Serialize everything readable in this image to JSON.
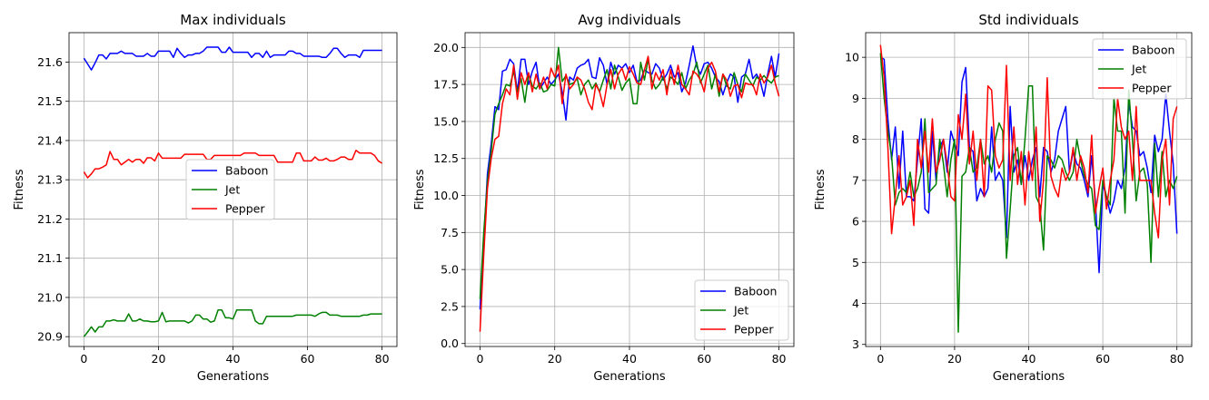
{
  "colors": {
    "Baboon": "#0000ff",
    "Jet": "#008000",
    "Pepper": "#ff0000"
  },
  "chart_data": [
    {
      "type": "line",
      "title": "Max individuals",
      "xlabel": "Generations",
      "ylabel": "Fitness",
      "grid": true,
      "legend": "center",
      "xlim": [
        -4,
        84
      ],
      "ylim": [
        20.875,
        21.675
      ],
      "xticks": [
        0,
        20,
        40,
        60,
        80
      ],
      "xtick_labels": [
        "0",
        "20",
        "40",
        "60",
        "80"
      ],
      "yticks": [
        20.9,
        21.0,
        21.1,
        21.2,
        21.3,
        21.4,
        21.5,
        21.6
      ],
      "ytick_labels": [
        "20.9",
        "21.0",
        "21.1",
        "21.2",
        "21.3",
        "21.4",
        "21.5",
        "21.6"
      ],
      "series": [
        {
          "name": "Baboon",
          "color": "#0000ff",
          "values": [
            21.61,
            21.595,
            21.58,
            21.598,
            21.618,
            21.618,
            21.608,
            21.622,
            21.622,
            21.622,
            21.628,
            21.622,
            21.622,
            21.622,
            21.615,
            21.615,
            21.615,
            21.622,
            21.615,
            21.615,
            21.628,
            21.628,
            21.628,
            21.628,
            21.612,
            21.635,
            21.622,
            21.612,
            21.618,
            21.618,
            21.622,
            21.622,
            21.628,
            21.638,
            21.638,
            21.638,
            21.638,
            21.625,
            21.625,
            21.638,
            21.625,
            21.625,
            21.625,
            21.625,
            21.625,
            21.612,
            21.622,
            21.622,
            21.612,
            21.628,
            21.612,
            21.618,
            21.618,
            21.618,
            21.618,
            21.628,
            21.628,
            21.622,
            21.622,
            21.615,
            21.615,
            21.615,
            21.615,
            21.615,
            21.612,
            21.612,
            21.622,
            21.635,
            21.635,
            21.622,
            21.612,
            21.618,
            21.618,
            21.618,
            21.612,
            21.63,
            21.63,
            21.63,
            21.63,
            21.63,
            21.63
          ]
        },
        {
          "name": "Jet",
          "color": "#008000",
          "values": [
            20.9,
            20.912,
            20.925,
            20.912,
            20.925,
            20.925,
            20.94,
            20.94,
            20.943,
            20.94,
            20.94,
            20.94,
            20.958,
            20.94,
            20.94,
            20.945,
            20.94,
            20.94,
            20.938,
            20.938,
            20.94,
            20.962,
            20.938,
            20.94,
            20.94,
            20.94,
            20.94,
            20.94,
            20.935,
            20.94,
            20.955,
            20.955,
            20.945,
            20.945,
            20.937,
            20.94,
            20.968,
            20.968,
            20.948,
            20.948,
            20.945,
            20.968,
            20.968,
            20.968,
            20.968,
            20.968,
            20.94,
            20.933,
            20.933,
            20.952,
            20.952,
            20.952,
            20.952,
            20.952,
            20.952,
            20.952,
            20.952,
            20.955,
            20.955,
            20.955,
            20.955,
            20.955,
            20.952,
            20.958,
            20.962,
            20.962,
            20.955,
            20.955,
            20.955,
            20.952,
            20.952,
            20.952,
            20.952,
            20.952,
            20.952,
            20.955,
            20.955,
            20.958,
            20.958,
            20.958,
            20.958
          ]
        },
        {
          "name": "Pepper",
          "color": "#ff0000",
          "values": [
            21.32,
            21.305,
            21.315,
            21.328,
            21.328,
            21.332,
            21.338,
            21.372,
            21.352,
            21.352,
            21.338,
            21.345,
            21.352,
            21.345,
            21.352,
            21.352,
            21.342,
            21.356,
            21.356,
            21.348,
            21.368,
            21.355,
            21.355,
            21.355,
            21.355,
            21.355,
            21.355,
            21.365,
            21.365,
            21.365,
            21.365,
            21.365,
            21.365,
            21.352,
            21.352,
            21.362,
            21.362,
            21.362,
            21.362,
            21.362,
            21.362,
            21.362,
            21.362,
            21.368,
            21.368,
            21.368,
            21.368,
            21.362,
            21.362,
            21.362,
            21.362,
            21.362,
            21.345,
            21.345,
            21.345,
            21.345,
            21.345,
            21.368,
            21.368,
            21.348,
            21.348,
            21.348,
            21.358,
            21.35,
            21.35,
            21.355,
            21.348,
            21.348,
            21.352,
            21.358,
            21.358,
            21.352,
            21.352,
            21.375,
            21.368,
            21.368,
            21.368,
            21.368,
            21.362,
            21.348,
            21.342
          ]
        }
      ]
    },
    {
      "type": "line",
      "title": "Avg individuals",
      "xlabel": "Generations",
      "ylabel": "Fitness",
      "grid": true,
      "legend": "lower right",
      "xlim": [
        -4,
        84
      ],
      "ylim": [
        -0.2,
        21.0
      ],
      "xticks": [
        0,
        20,
        40,
        60,
        80
      ],
      "xtick_labels": [
        "0",
        "20",
        "40",
        "60",
        "80"
      ],
      "yticks": [
        0.0,
        2.5,
        5.0,
        7.5,
        10.0,
        12.5,
        15.0,
        17.5,
        20.0
      ],
      "ytick_labels": [
        "0.0",
        "2.5",
        "5.0",
        "7.5",
        "10.0",
        "12.5",
        "15.0",
        "17.5",
        "20.0"
      ],
      "series": [
        {
          "name": "Baboon",
          "color": "#0000ff",
          "values": [
            2.3,
            7.0,
            11.5,
            13.5,
            16.0,
            15.8,
            18.4,
            18.5,
            19.2,
            18.9,
            17.0,
            19.2,
            19.2,
            17.5,
            18.4,
            19.0,
            17.2,
            17.6,
            18.0,
            17.5,
            17.8,
            18.2,
            17.0,
            15.1,
            18.0,
            17.8,
            18.6,
            18.8,
            18.9,
            19.2,
            18.0,
            17.9,
            19.3,
            18.8,
            17.5,
            19.0,
            18.2,
            18.8,
            18.6,
            18.9,
            18.3,
            18.8,
            17.7,
            17.8,
            18.5,
            18.3,
            18.2,
            18.9,
            18.6,
            17.8,
            18.2,
            18.8,
            18.0,
            18.3,
            17.0,
            17.6,
            18.8,
            20.1,
            18.7,
            18.2,
            18.9,
            19.0,
            18.6,
            18.0,
            17.7,
            16.8,
            17.6,
            18.2,
            18.0,
            16.3,
            18.0,
            18.2,
            19.2,
            17.9,
            18.2,
            17.7,
            16.7,
            18.2,
            19.4,
            18.0,
            19.6
          ]
        },
        {
          "name": "Jet",
          "color": "#008000",
          "values": [
            3.0,
            7.5,
            11.0,
            13.0,
            15.5,
            16.2,
            16.8,
            17.5,
            17.4,
            18.4,
            17.0,
            17.9,
            16.3,
            18.2,
            17.4,
            17.2,
            17.6,
            17.0,
            17.1,
            17.5,
            17.4,
            20.0,
            17.7,
            18.1,
            17.5,
            17.6,
            17.9,
            16.8,
            17.5,
            17.8,
            17.2,
            17.6,
            17.0,
            17.8,
            18.5,
            17.2,
            18.8,
            18.0,
            17.1,
            17.6,
            17.9,
            16.2,
            16.2,
            19.0,
            17.8,
            19.2,
            17.8,
            17.2,
            17.5,
            18.0,
            17.2,
            18.0,
            17.8,
            17.5,
            18.3,
            17.2,
            17.8,
            18.2,
            19.0,
            17.6,
            18.2,
            18.8,
            17.2,
            18.2,
            16.7,
            18.2,
            17.4,
            17.2,
            18.3,
            17.5,
            17.0,
            18.2,
            17.8,
            17.4,
            18.0,
            17.8,
            18.1,
            17.8,
            17.6,
            18.0,
            18.1
          ]
        },
        {
          "name": "Pepper",
          "color": "#ff0000",
          "values": [
            0.8,
            6.0,
            10.5,
            12.5,
            13.8,
            14.0,
            16.2,
            17.2,
            16.8,
            18.8,
            16.5,
            18.3,
            17.5,
            18.3,
            17.0,
            18.2,
            17.2,
            18.0,
            17.2,
            18.6,
            18.0,
            18.8,
            16.2,
            18.2,
            17.2,
            17.5,
            18.0,
            17.8,
            17.2,
            16.3,
            15.8,
            17.5,
            17.0,
            16.0,
            17.5,
            18.5,
            17.2,
            18.2,
            18.6,
            17.8,
            18.7,
            18.2,
            17.6,
            17.5,
            18.5,
            19.4,
            17.2,
            18.3,
            17.8,
            18.5,
            16.8,
            18.5,
            17.5,
            18.8,
            17.5,
            17.2,
            16.8,
            18.4,
            18.2,
            17.8,
            17.0,
            18.6,
            19.0,
            18.4,
            17.0,
            18.2,
            17.8,
            16.7,
            17.4,
            17.5,
            16.6,
            17.6,
            17.5,
            17.5,
            16.8,
            18.2,
            17.6,
            18.0,
            18.8,
            17.6,
            16.7
          ]
        }
      ]
    },
    {
      "type": "line",
      "title": "Std individuals",
      "xlabel": "Generations",
      "ylabel": "Fitness",
      "grid": true,
      "legend": "upper right",
      "xlim": [
        -4,
        84
      ],
      "ylim": [
        2.95,
        10.6
      ],
      "xticks": [
        0,
        20,
        40,
        60,
        80
      ],
      "xtick_labels": [
        "0",
        "20",
        "40",
        "60",
        "80"
      ],
      "yticks": [
        3,
        4,
        5,
        6,
        7,
        8,
        9,
        10
      ],
      "ytick_labels": [
        "3",
        "4",
        "5",
        "6",
        "7",
        "8",
        "9",
        "10"
      ],
      "series": [
        {
          "name": "Baboon",
          "color": "#0000ff",
          "values": [
            10.0,
            9.95,
            8.5,
            7.5,
            8.3,
            6.8,
            8.2,
            6.6,
            6.6,
            6.5,
            7.5,
            8.5,
            6.3,
            6.2,
            8.2,
            7.0,
            7.8,
            8.0,
            7.2,
            8.2,
            7.9,
            7.6,
            9.4,
            9.75,
            7.8,
            7.7,
            6.5,
            6.8,
            6.6,
            6.8,
            8.3,
            7.0,
            7.2,
            7.0,
            5.6,
            8.8,
            7.2,
            7.5,
            6.9,
            7.6,
            7.0,
            7.5,
            7.8,
            6.6,
            7.8,
            7.7,
            7.2,
            7.5,
            8.2,
            8.5,
            8.8,
            7.2,
            7.7,
            7.4,
            7.3,
            7.0,
            6.6,
            7.6,
            6.5,
            4.75,
            6.9,
            6.6,
            6.2,
            6.5,
            7.0,
            6.8,
            7.3,
            8.9,
            8.3,
            8.2,
            7.6,
            7.7,
            7.3,
            6.7,
            8.1,
            7.7,
            8.0,
            9.1,
            8.2,
            7.4,
            5.7
          ]
        },
        {
          "name": "Jet",
          "color": "#008000",
          "values": [
            10.1,
            9.0,
            8.2,
            7.6,
            6.4,
            6.7,
            6.8,
            6.7,
            7.2,
            6.6,
            6.8,
            7.2,
            8.5,
            6.7,
            6.8,
            6.9,
            8.0,
            7.4,
            6.6,
            7.5,
            8.0,
            3.3,
            7.1,
            7.2,
            7.8,
            7.2,
            7.3,
            8.0,
            7.4,
            7.6,
            7.2,
            8.0,
            8.4,
            8.2,
            5.1,
            6.3,
            7.6,
            7.8,
            6.9,
            8.0,
            9.3,
            9.3,
            6.6,
            6.4,
            5.3,
            7.6,
            7.5,
            7.3,
            7.6,
            7.5,
            7.2,
            7.0,
            7.2,
            8.0,
            7.5,
            7.1,
            6.9,
            6.8,
            5.9,
            5.8,
            7.0,
            6.6,
            6.4,
            9.0,
            8.2,
            8.2,
            6.2,
            9.2,
            8.0,
            6.5,
            7.2,
            7.3,
            6.9,
            5.0,
            7.9,
            6.6,
            7.7,
            6.6,
            7.0,
            6.8,
            7.1
          ]
        },
        {
          "name": "Pepper",
          "color": "#ff0000",
          "values": [
            10.3,
            9.5,
            7.8,
            5.7,
            6.6,
            7.6,
            6.4,
            6.6,
            7.0,
            5.9,
            8.0,
            7.3,
            8.2,
            7.2,
            8.5,
            7.2,
            7.5,
            8.0,
            7.4,
            6.6,
            6.5,
            8.6,
            8.0,
            9.1,
            7.4,
            8.2,
            7.0,
            8.0,
            6.6,
            9.3,
            9.2,
            7.6,
            7.3,
            7.5,
            9.8,
            7.0,
            8.3,
            6.9,
            7.7,
            6.4,
            7.7,
            7.0,
            8.3,
            6.0,
            7.0,
            9.5,
            7.1,
            6.8,
            6.6,
            7.3,
            7.0,
            7.2,
            7.8,
            7.0,
            7.6,
            7.3,
            6.7,
            8.1,
            6.2,
            6.8,
            7.3,
            6.3,
            7.0,
            7.5,
            9.0,
            8.3,
            8.0,
            8.2,
            7.0,
            8.8,
            7.0,
            7.0,
            7.0,
            7.0,
            6.2,
            5.6,
            7.5,
            8.0,
            6.4,
            8.5,
            8.8
          ]
        }
      ]
    }
  ]
}
